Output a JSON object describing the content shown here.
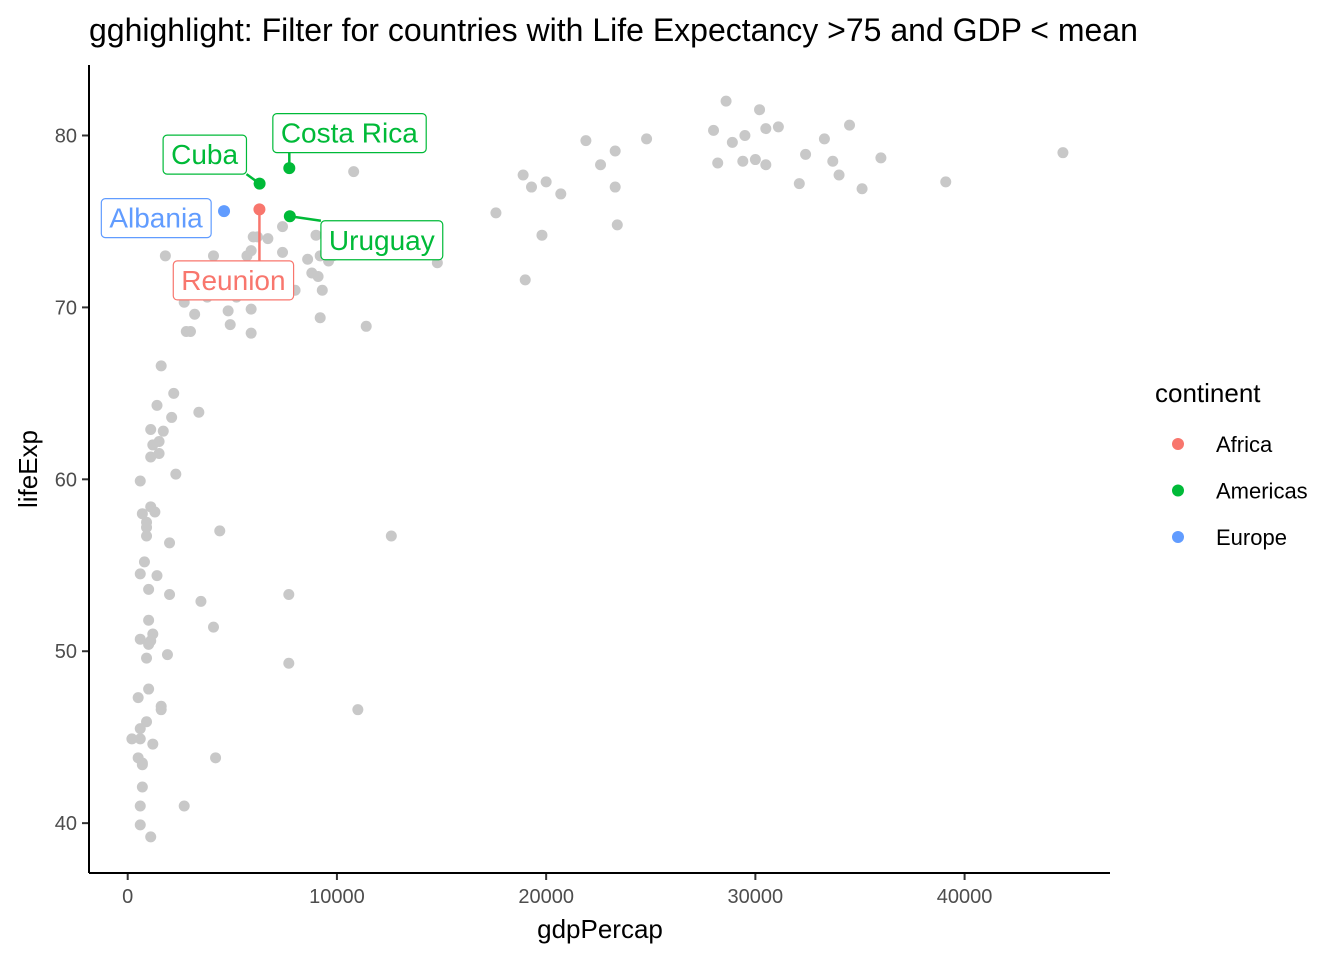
{
  "chart_data": {
    "type": "scatter",
    "title": "gghighlight: Filter for countries with Life Expectancy >75 and GDP < mean",
    "xlabel": "gdpPercap",
    "ylabel": "lifeExp",
    "xlim": [
      -1850,
      46950
    ],
    "ylim": [
      37.1,
      84.1
    ],
    "xticks": [
      0,
      10000,
      20000,
      30000,
      40000
    ],
    "yticks": [
      40,
      50,
      60,
      70,
      80
    ],
    "grid": false,
    "legend": {
      "title": "continent",
      "position": "right",
      "entries": [
        {
          "name": "Africa",
          "color": "#F8766D"
        },
        {
          "name": "Americas",
          "color": "#00BA38"
        },
        {
          "name": "Europe",
          "color": "#619CFF"
        }
      ]
    },
    "background_point_color": "#C8C8C8",
    "highlighted": [
      {
        "label": "Costa Rica",
        "continent": "Americas",
        "color": "#00BA38",
        "x": 7724,
        "y": 78.1
      },
      {
        "label": "Cuba",
        "continent": "Americas",
        "color": "#00BA38",
        "x": 6303,
        "y": 77.2
      },
      {
        "label": "Uruguay",
        "continent": "Americas",
        "color": "#00BA38",
        "x": 7749,
        "y": 75.3
      },
      {
        "label": "Reunion",
        "continent": "Africa",
        "color": "#F8766D",
        "x": 6296,
        "y": 75.7
      },
      {
        "label": "Albania",
        "continent": "Europe",
        "color": "#619CFF",
        "x": 4604,
        "y": 75.6
      }
    ],
    "background_points": [
      [
        28600,
        82.0
      ],
      [
        30200,
        81.5
      ],
      [
        34500,
        80.6
      ],
      [
        31100,
        80.5
      ],
      [
        30500,
        80.4
      ],
      [
        28000,
        80.3
      ],
      [
        29500,
        80.0
      ],
      [
        33300,
        79.8
      ],
      [
        24800,
        79.8
      ],
      [
        21900,
        79.7
      ],
      [
        28900,
        79.6
      ],
      [
        23300,
        79.1
      ],
      [
        44700,
        79.0
      ],
      [
        32400,
        78.9
      ],
      [
        36000,
        78.7
      ],
      [
        30000,
        78.6
      ],
      [
        33700,
        78.5
      ],
      [
        29400,
        78.5
      ],
      [
        28200,
        78.4
      ],
      [
        30500,
        78.3
      ],
      [
        22600,
        78.3
      ],
      [
        10800,
        77.9
      ],
      [
        18900,
        77.7
      ],
      [
        34000,
        77.7
      ],
      [
        20000,
        77.3
      ],
      [
        39100,
        77.3
      ],
      [
        32100,
        77.2
      ],
      [
        19300,
        77.0
      ],
      [
        23300,
        77.0
      ],
      [
        35100,
        76.9
      ],
      [
        20700,
        76.6
      ],
      [
        17600,
        75.5
      ],
      [
        23400,
        74.8
      ],
      [
        7400,
        74.7
      ],
      [
        19800,
        74.2
      ],
      [
        9000,
        74.2
      ],
      [
        6000,
        74.1
      ],
      [
        6200,
        74.1
      ],
      [
        6700,
        74.0
      ],
      [
        5900,
        73.3
      ],
      [
        7400,
        73.2
      ],
      [
        9800,
        73.0
      ],
      [
        4100,
        73.0
      ],
      [
        1800,
        73.0
      ],
      [
        9200,
        73.0
      ],
      [
        5700,
        73.0
      ],
      [
        8600,
        72.8
      ],
      [
        9600,
        72.7
      ],
      [
        14800,
        72.6
      ],
      [
        4600,
        72.0
      ],
      [
        6100,
        72.0
      ],
      [
        7000,
        72.0
      ],
      [
        8800,
        72.0
      ],
      [
        5200,
        71.9
      ],
      [
        9100,
        71.8
      ],
      [
        19000,
        71.6
      ],
      [
        3800,
        71.2
      ],
      [
        9300,
        71.0
      ],
      [
        8000,
        71.0
      ],
      [
        3600,
        71.0
      ],
      [
        3800,
        70.6
      ],
      [
        5200,
        70.6
      ],
      [
        2700,
        70.3
      ],
      [
        4800,
        69.8
      ],
      [
        5900,
        69.9
      ],
      [
        3200,
        69.6
      ],
      [
        9200,
        69.4
      ],
      [
        4900,
        69.0
      ],
      [
        11400,
        68.9
      ],
      [
        2800,
        68.6
      ],
      [
        3000,
        68.6
      ],
      [
        5900,
        68.5
      ],
      [
        1600,
        66.6
      ],
      [
        2200,
        65.0
      ],
      [
        1400,
        64.3
      ],
      [
        3400,
        63.9
      ],
      [
        2100,
        63.6
      ],
      [
        1100,
        62.9
      ],
      [
        1700,
        62.8
      ],
      [
        1500,
        62.2
      ],
      [
        1200,
        62.0
      ],
      [
        1500,
        61.5
      ],
      [
        1100,
        61.3
      ],
      [
        2300,
        60.3
      ],
      [
        600,
        59.9
      ],
      [
        1100,
        58.4
      ],
      [
        1300,
        58.1
      ],
      [
        700,
        58.0
      ],
      [
        900,
        57.5
      ],
      [
        900,
        57.2
      ],
      [
        4400,
        57.0
      ],
      [
        900,
        56.7
      ],
      [
        12600,
        56.7
      ],
      [
        2000,
        56.3
      ],
      [
        800,
        55.2
      ],
      [
        600,
        54.5
      ],
      [
        1400,
        54.4
      ],
      [
        1000,
        53.6
      ],
      [
        2000,
        53.3
      ],
      [
        7700,
        53.3
      ],
      [
        3500,
        52.9
      ],
      [
        1000,
        51.8
      ],
      [
        4100,
        51.4
      ],
      [
        1200,
        51.0
      ],
      [
        600,
        50.7
      ],
      [
        1100,
        50.6
      ],
      [
        1000,
        50.4
      ],
      [
        1900,
        49.8
      ],
      [
        900,
        49.6
      ],
      [
        7700,
        49.3
      ],
      [
        1000,
        47.8
      ],
      [
        500,
        47.3
      ],
      [
        1600,
        46.8
      ],
      [
        1600,
        46.6
      ],
      [
        11000,
        46.6
      ],
      [
        900,
        45.9
      ],
      [
        600,
        45.5
      ],
      [
        200,
        44.9
      ],
      [
        600,
        44.9
      ],
      [
        1200,
        44.6
      ],
      [
        500,
        43.8
      ],
      [
        4200,
        43.8
      ],
      [
        700,
        43.5
      ],
      [
        700,
        43.4
      ],
      [
        700,
        42.1
      ],
      [
        600,
        41.0
      ],
      [
        2700,
        41.0
      ],
      [
        600,
        39.9
      ],
      [
        1100,
        39.2
      ]
    ]
  }
}
